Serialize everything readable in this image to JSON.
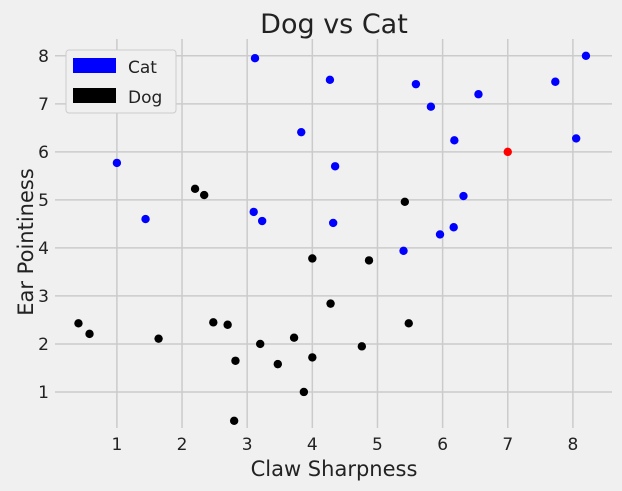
{
  "chart_data": {
    "type": "scatter",
    "title": "Dog vs Cat",
    "xlabel": "Claw Sharpness",
    "ylabel": "Ear Pointiness",
    "xlim": [
      0.05,
      8.6
    ],
    "ylim": [
      0.25,
      8.35
    ],
    "xticks": [
      1,
      2,
      3,
      4,
      5,
      6,
      7,
      8
    ],
    "yticks": [
      1,
      2,
      3,
      4,
      5,
      6,
      7,
      8
    ],
    "grid": true,
    "legend_position": "top-left",
    "series": [
      {
        "name": "Cat",
        "color": "#0000ff",
        "points": [
          [
            3.12,
            7.95
          ],
          [
            4.27,
            7.5
          ],
          [
            5.59,
            7.41
          ],
          [
            5.82,
            6.94
          ],
          [
            6.55,
            7.2
          ],
          [
            7.73,
            7.46
          ],
          [
            8.2,
            8.0
          ],
          [
            3.83,
            6.41
          ],
          [
            6.18,
            6.24
          ],
          [
            8.05,
            6.28
          ],
          [
            1.0,
            5.77
          ],
          [
            4.35,
            5.7
          ],
          [
            1.44,
            4.6
          ],
          [
            3.1,
            4.75
          ],
          [
            3.23,
            4.56
          ],
          [
            4.32,
            4.52
          ],
          [
            6.32,
            5.08
          ],
          [
            5.4,
            3.94
          ],
          [
            5.96,
            4.28
          ],
          [
            6.17,
            4.43
          ]
        ]
      },
      {
        "name": "Dog",
        "color": "#000000",
        "points": [
          [
            2.2,
            5.23
          ],
          [
            2.34,
            5.1
          ],
          [
            5.42,
            4.96
          ],
          [
            4.0,
            3.78
          ],
          [
            4.87,
            3.74
          ],
          [
            4.28,
            2.84
          ],
          [
            0.41,
            2.43
          ],
          [
            0.58,
            2.21
          ],
          [
            1.64,
            2.11
          ],
          [
            2.48,
            2.45
          ],
          [
            2.7,
            2.4
          ],
          [
            3.2,
            2.0
          ],
          [
            3.72,
            2.13
          ],
          [
            5.48,
            2.43
          ],
          [
            4.76,
            1.95
          ],
          [
            2.82,
            1.65
          ],
          [
            3.47,
            1.58
          ],
          [
            4.0,
            1.72
          ],
          [
            3.87,
            1.0
          ],
          [
            2.8,
            0.4
          ]
        ]
      },
      {
        "name": "",
        "color": "#ff0000",
        "points": [
          [
            7.0,
            6.0
          ]
        ]
      }
    ]
  }
}
